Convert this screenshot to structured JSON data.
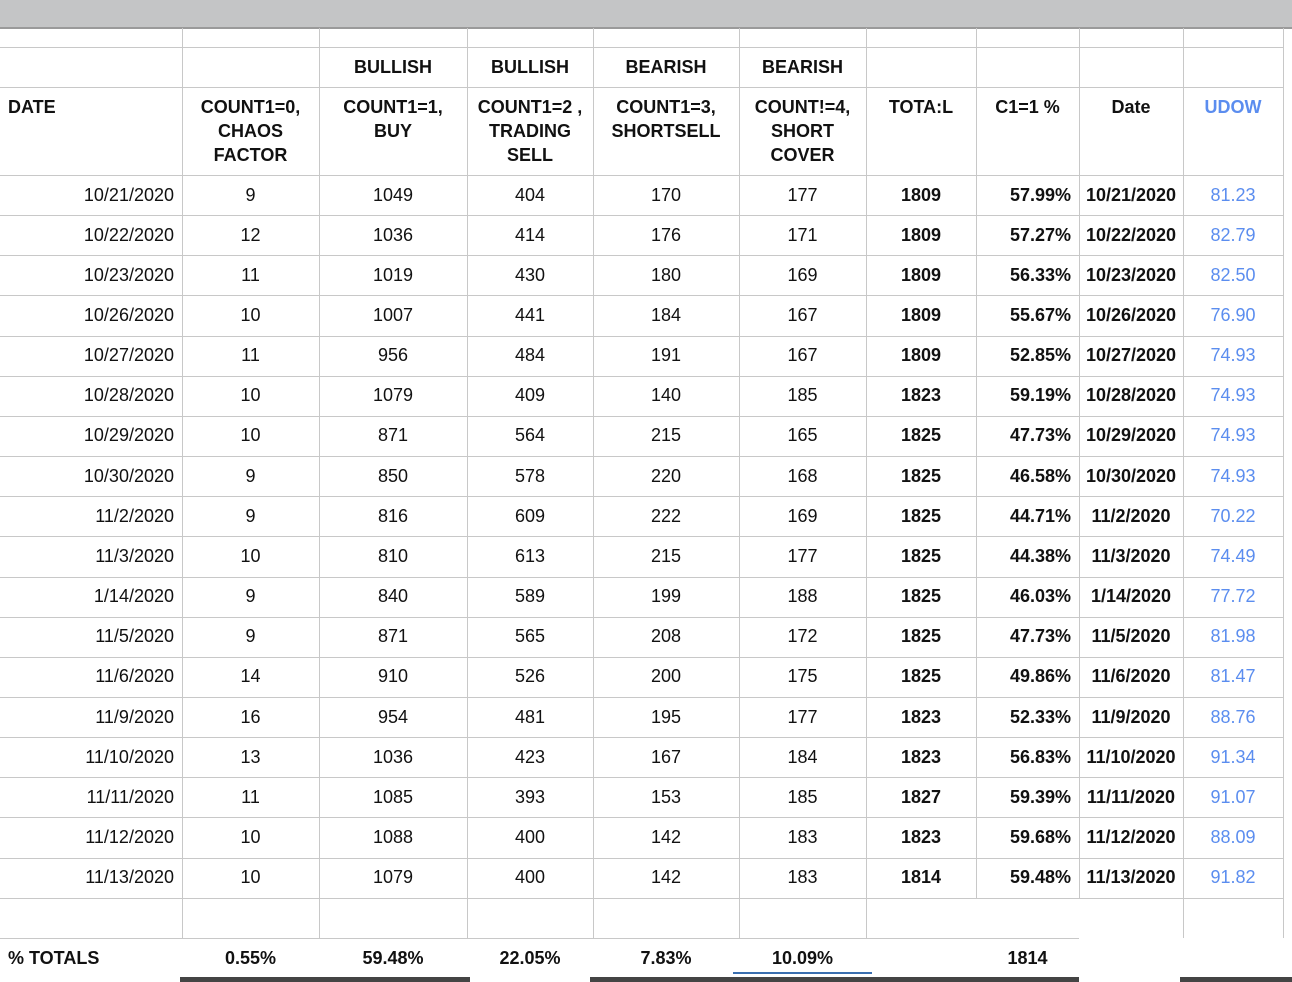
{
  "table": {
    "group_row": [
      "BULLISH",
      "BULLISH",
      "BEARISH",
      "BEARISH"
    ],
    "header": [
      "DATE",
      "COUNT1=0, CHAOS FACTOR",
      "COUNT1=1, BUY",
      "COUNT1=2 , TRADING SELL",
      "COUNT1=3, SHORTSELL",
      "COUNT!=4, SHORT COVER",
      "TOTA:L",
      "C1=1 %",
      "Date",
      "UDOW"
    ],
    "rows": [
      [
        "10/21/2020",
        "9",
        "1049",
        "404",
        "170",
        "177",
        "1809",
        "57.99%",
        "10/21/2020",
        "81.23"
      ],
      [
        "10/22/2020",
        "12",
        "1036",
        "414",
        "176",
        "171",
        "1809",
        "57.27%",
        "10/22/2020",
        "82.79"
      ],
      [
        "10/23/2020",
        "11",
        "1019",
        "430",
        "180",
        "169",
        "1809",
        "56.33%",
        "10/23/2020",
        "82.50"
      ],
      [
        "10/26/2020",
        "10",
        "1007",
        "441",
        "184",
        "167",
        "1809",
        "55.67%",
        "10/26/2020",
        "76.90"
      ],
      [
        "10/27/2020",
        "11",
        "956",
        "484",
        "191",
        "167",
        "1809",
        "52.85%",
        "10/27/2020",
        "74.93"
      ],
      [
        "10/28/2020",
        "10",
        "1079",
        "409",
        "140",
        "185",
        "1823",
        "59.19%",
        "10/28/2020",
        "74.93"
      ],
      [
        "10/29/2020",
        "10",
        "871",
        "564",
        "215",
        "165",
        "1825",
        "47.73%",
        "10/29/2020",
        "74.93"
      ],
      [
        "10/30/2020",
        "9",
        "850",
        "578",
        "220",
        "168",
        "1825",
        "46.58%",
        "10/30/2020",
        "74.93"
      ],
      [
        "11/2/2020",
        "9",
        "816",
        "609",
        "222",
        "169",
        "1825",
        "44.71%",
        "11/2/2020",
        "70.22"
      ],
      [
        "11/3/2020",
        "10",
        "810",
        "613",
        "215",
        "177",
        "1825",
        "44.38%",
        "11/3/2020",
        "74.49"
      ],
      [
        "1/14/2020",
        "9",
        "840",
        "589",
        "199",
        "188",
        "1825",
        "46.03%",
        "1/14/2020",
        "77.72"
      ],
      [
        "11/5/2020",
        "9",
        "871",
        "565",
        "208",
        "172",
        "1825",
        "47.73%",
        "11/5/2020",
        "81.98"
      ],
      [
        "11/6/2020",
        "14",
        "910",
        "526",
        "200",
        "175",
        "1825",
        "49.86%",
        "11/6/2020",
        "81.47"
      ],
      [
        "11/9/2020",
        "16",
        "954",
        "481",
        "195",
        "177",
        "1823",
        "52.33%",
        "11/9/2020",
        "88.76"
      ],
      [
        "11/10/2020",
        "13",
        "1036",
        "423",
        "167",
        "184",
        "1823",
        "56.83%",
        "11/10/2020",
        "91.34"
      ],
      [
        "11/11/2020",
        "11",
        "1085",
        "393",
        "153",
        "185",
        "1827",
        "59.39%",
        "11/11/2020",
        "91.07"
      ],
      [
        "11/12/2020",
        "10",
        "1088",
        "400",
        "142",
        "183",
        "1823",
        "59.68%",
        "11/12/2020",
        "88.09"
      ],
      [
        "11/13/2020",
        "10",
        "1079",
        "400",
        "142",
        "183",
        "1814",
        "59.48%",
        "11/13/2020",
        "91.82"
      ]
    ],
    "totals": {
      "label": "% TOTALS",
      "values": [
        "0.55%",
        "59.48%",
        "22.05%",
        "7.83%",
        "10.09%"
      ],
      "total": "1814"
    }
  }
}
